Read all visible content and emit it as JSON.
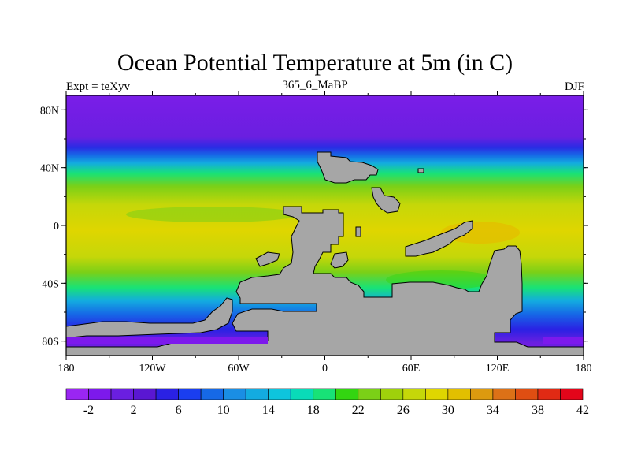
{
  "title": "Ocean Potential Temperature at 5m (in C)",
  "subtitle_left": "Expt = teXyv",
  "subtitle_center": "365_6_MaBP",
  "subtitle_right": "DJF",
  "map": {
    "lon_range": [
      -180,
      180
    ],
    "lat_range": [
      -90,
      90
    ],
    "x_tick_labels": [
      "180",
      "120W",
      "60W",
      "0",
      "60E",
      "120E",
      "180"
    ],
    "y_tick_labels": [
      "80N",
      "40N",
      "0",
      "40S",
      "80S"
    ],
    "land_color": "#a6a6a6"
  },
  "colorbar": {
    "labels": [
      "-2",
      "2",
      "6",
      "10",
      "14",
      "18",
      "22",
      "26",
      "30",
      "34",
      "38",
      "42"
    ],
    "colors": [
      "#9a26f2",
      "#7d19ec",
      "#6a1fe0",
      "#5a17d2",
      "#2a21e4",
      "#1a3ef0",
      "#1669e6",
      "#1a8ee4",
      "#13abe0",
      "#0ec4dd",
      "#09dbb8",
      "#18e277",
      "#33d511",
      "#7bd017",
      "#9fd10b",
      "#c5d709",
      "#dfd600",
      "#e2bf00",
      "#dc9a0f",
      "#dc7117",
      "#df4e12",
      "#e02a14",
      "#e3051a"
    ]
  }
}
